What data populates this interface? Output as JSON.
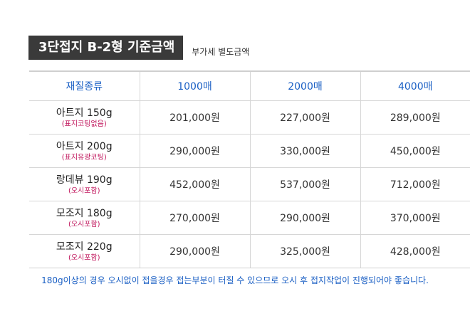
{
  "title": "3단접지 B-2형 기준금액",
  "note": "부가세 별도금액",
  "headers": [
    "재질종류",
    "1000매",
    "2000매",
    "4000매"
  ],
  "rows": [
    {
      "name": "아트지 150g",
      "sub": "(표지코팅없음)",
      "prices": [
        "201,000원",
        "227,000원",
        "289,000원"
      ]
    },
    {
      "name": "아트지 200g",
      "sub": "(표지유광코팅)",
      "prices": [
        "290,000원",
        "330,000원",
        "450,000원"
      ]
    },
    {
      "name": "랑데뷰 190g",
      "sub": "(오시포함)",
      "prices": [
        "452,000원",
        "537,000원",
        "712,000원"
      ]
    },
    {
      "name": "모조지 180g",
      "sub": "(오시포함)",
      "prices": [
        "270,000원",
        "290,000원",
        "370,000원"
      ]
    },
    {
      "name": "모조지 220g",
      "sub": "(오시포함)",
      "prices": [
        "290,000원",
        "325,000원",
        "428,000원"
      ]
    }
  ],
  "footnote": "180g이상의 경우 오시없이 접을경우 접는부분이 터질 수 있으므로 오시 후 접지작업이 진행되어야 좋습니다."
}
